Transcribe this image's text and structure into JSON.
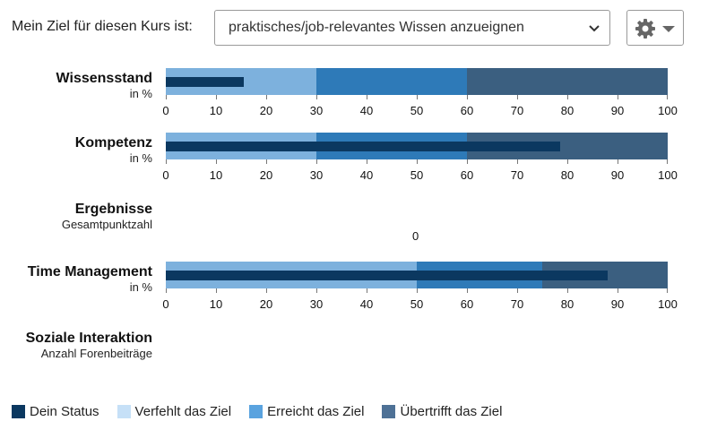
{
  "goal": {
    "label": "Mein Ziel für diesen Kurs ist:",
    "selected": "praktisches/job-relevantes Wissen anzueignen",
    "settings_icon": "gear-icon",
    "settings_caret_icon": "caret-down-icon"
  },
  "colors": {
    "status": "#0b3860",
    "missed": "#7db1dd",
    "reached": "#2e7ab8",
    "exceeded": "#3b5f80",
    "legend_missed": "#c6e0f7",
    "legend_reached": "#5aa3df",
    "legend_exceeded": "#4e7196"
  },
  "metrics": [
    {
      "key": "wissensstand",
      "title": "Wissensstand",
      "subtitle": "in %",
      "thresholds": [
        30,
        60,
        100
      ],
      "status": 15.5,
      "ticks": [
        "0",
        "10",
        "20",
        "30",
        "40",
        "50",
        "60",
        "70",
        "80",
        "90",
        "100"
      ]
    },
    {
      "key": "kompetenz",
      "title": "Kompetenz",
      "subtitle": "in %",
      "thresholds": [
        30,
        60,
        100
      ],
      "status": 78.5,
      "ticks": [
        "0",
        "10",
        "20",
        "30",
        "40",
        "50",
        "60",
        "70",
        "80",
        "90",
        "100"
      ]
    },
    {
      "key": "ergebnisse",
      "title": "Ergebnisse",
      "subtitle": "Gesamtpunktzahl",
      "value": "0"
    },
    {
      "key": "time-management",
      "title": "Time Management",
      "subtitle": "in %",
      "thresholds": [
        50,
        75,
        100
      ],
      "status": 88,
      "ticks": [
        "0",
        "10",
        "20",
        "30",
        "40",
        "50",
        "60",
        "70",
        "80",
        "90",
        "100"
      ]
    },
    {
      "key": "soziale-interaktion",
      "title": "Soziale Interaktion",
      "subtitle": "Anzahl Forenbeiträge"
    }
  ],
  "legend": [
    {
      "label": "Dein Status",
      "color_key": "status"
    },
    {
      "label": "Verfehlt das Ziel",
      "color_key": "legend_missed"
    },
    {
      "label": "Erreicht das Ziel",
      "color_key": "legend_reached"
    },
    {
      "label": "Übertrifft das Ziel",
      "color_key": "legend_exceeded"
    }
  ]
}
